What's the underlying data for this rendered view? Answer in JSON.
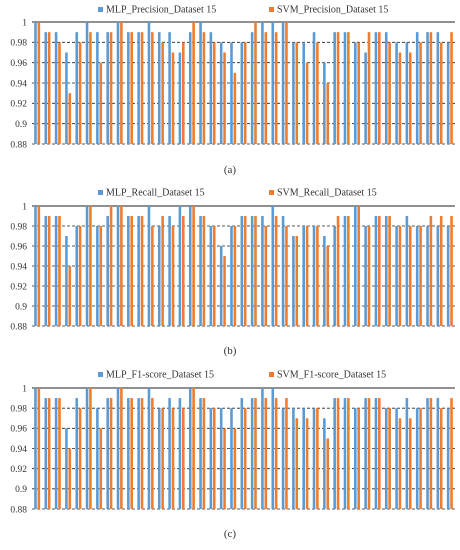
{
  "colors": {
    "mlp": "#5B9BD5",
    "svm": "#ED7D31",
    "grid": "#222222"
  },
  "chart_data": [
    {
      "type": "bar",
      "caption": "(a)",
      "legend_placement": "top",
      "ylim": [
        0.88,
        1.0
      ],
      "yticks": [
        "1",
        "0.98",
        "0.96",
        "0.94",
        "0.92",
        "0.9",
        "0.88"
      ],
      "grid": true,
      "categories": [
        "",
        "",
        " ",
        "",
        "",
        "",
        "",
        "",
        "",
        "",
        "",
        "",
        "",
        "",
        "",
        "",
        "",
        "",
        "",
        "",
        "",
        "",
        "",
        "",
        "",
        "",
        "",
        "",
        "",
        "",
        "",
        "",
        "",
        "",
        "",
        "",
        "",
        "",
        "",
        "",
        ""
      ],
      "series": [
        {
          "name": "MLP_Precision_Dataset 15",
          "values": [
            1.0,
            0.99,
            0.99,
            0.97,
            0.99,
            1.0,
            0.99,
            0.99,
            1.0,
            0.99,
            0.99,
            1.0,
            0.99,
            0.99,
            0.97,
            0.99,
            1.0,
            0.99,
            0.98,
            0.98,
            0.98,
            0.99,
            1.0,
            1.0,
            1.0,
            0.98,
            0.98,
            0.99,
            0.96,
            0.99,
            0.99,
            0.98,
            0.97,
            0.99,
            0.99,
            0.98,
            0.98,
            0.99,
            0.99,
            0.99,
            0.98
          ]
        },
        {
          "name": "SVM_Precision_Dataset 15",
          "values": [
            1.0,
            0.99,
            0.98,
            0.93,
            0.98,
            0.99,
            0.96,
            0.99,
            1.0,
            0.99,
            0.99,
            0.99,
            0.98,
            0.97,
            0.98,
            1.0,
            0.99,
            0.98,
            0.97,
            0.95,
            0.98,
            1.0,
            0.99,
            0.99,
            1.0,
            0.98,
            0.96,
            0.98,
            0.94,
            0.99,
            0.99,
            0.98,
            0.99,
            0.99,
            0.98,
            0.97,
            0.97,
            0.98,
            0.99,
            0.98,
            0.99
          ]
        }
      ]
    },
    {
      "type": "bar",
      "caption": "(b)",
      "legend_placement": "top",
      "ylim": [
        0.88,
        1.0
      ],
      "yticks": [
        "1",
        "0.98",
        "0.96",
        "0.94",
        "0.92",
        "0.9",
        "0.88"
      ],
      "grid": true,
      "categories": [
        "",
        "",
        "",
        "",
        "",
        "",
        "",
        "",
        "",
        "",
        "",
        "",
        "",
        "",
        "",
        "",
        "",
        "",
        "",
        "",
        "",
        "",
        "",
        "",
        "",
        "",
        "",
        "",
        "",
        "",
        "",
        "",
        "",
        "",
        "",
        "",
        "",
        "",
        "",
        "",
        ""
      ],
      "series": [
        {
          "name": "MLP_Recall_Dataset 15",
          "values": [
            1.0,
            0.99,
            0.99,
            0.97,
            0.98,
            1.0,
            0.98,
            0.99,
            1.0,
            0.99,
            0.99,
            1.0,
            0.98,
            0.99,
            1.0,
            1.0,
            0.99,
            0.98,
            0.96,
            0.98,
            0.99,
            0.99,
            0.99,
            1.0,
            0.99,
            0.97,
            0.98,
            0.98,
            0.97,
            0.98,
            0.99,
            1.0,
            0.98,
            0.99,
            0.99,
            0.98,
            0.99,
            0.98,
            0.98,
            0.98,
            0.98
          ]
        },
        {
          "name": "SVM_Recall_Dataset 15",
          "values": [
            1.0,
            0.99,
            0.99,
            0.94,
            0.98,
            1.0,
            0.98,
            1.0,
            1.0,
            0.99,
            0.99,
            0.98,
            0.99,
            0.98,
            0.99,
            1.0,
            0.99,
            0.98,
            0.95,
            0.98,
            0.99,
            0.99,
            0.98,
            0.99,
            0.98,
            0.97,
            0.98,
            0.98,
            0.96,
            0.99,
            0.99,
            1.0,
            0.98,
            0.99,
            0.99,
            0.98,
            0.98,
            0.98,
            0.99,
            0.99,
            0.99
          ]
        }
      ]
    },
    {
      "type": "bar",
      "caption": "(c)",
      "legend_placement": "top",
      "ylim": [
        0.88,
        1.0
      ],
      "yticks": [
        "1",
        "0.98",
        "0.96",
        "0.94",
        "0.92",
        "0.9",
        "0.88"
      ],
      "grid": true,
      "categories": [
        "",
        "",
        "",
        "",
        "",
        "",
        "",
        "",
        "",
        "",
        "",
        "",
        "",
        "",
        "",
        "",
        "",
        "",
        "",
        "",
        "",
        "",
        "",
        "",
        "",
        "",
        "",
        "",
        "",
        "",
        "",
        "",
        "",
        "",
        "",
        "",
        "",
        "",
        "",
        "",
        ""
      ],
      "series": [
        {
          "name": "MLP_F1-score_Dataset 15",
          "values": [
            1.0,
            0.99,
            0.99,
            0.96,
            0.99,
            1.0,
            0.98,
            0.99,
            1.0,
            0.99,
            0.99,
            1.0,
            0.98,
            0.99,
            0.99,
            1.0,
            0.99,
            0.98,
            0.98,
            0.98,
            0.99,
            0.99,
            1.0,
            1.0,
            0.98,
            0.98,
            0.98,
            0.98,
            0.97,
            0.99,
            0.99,
            0.98,
            0.99,
            0.99,
            0.98,
            0.98,
            0.99,
            0.98,
            0.99,
            0.99,
            0.98
          ]
        },
        {
          "name": "SVM_F1-score_Dataset 15",
          "values": [
            1.0,
            0.99,
            0.99,
            0.94,
            0.98,
            1.0,
            0.96,
            0.99,
            1.0,
            0.99,
            0.99,
            0.99,
            0.98,
            0.98,
            0.98,
            1.0,
            0.99,
            0.98,
            0.96,
            0.96,
            0.98,
            0.99,
            0.99,
            0.99,
            0.99,
            0.97,
            0.97,
            0.98,
            0.95,
            0.99,
            0.99,
            0.98,
            0.99,
            0.99,
            0.98,
            0.97,
            0.97,
            0.98,
            0.99,
            0.98,
            0.99
          ]
        }
      ]
    }
  ]
}
